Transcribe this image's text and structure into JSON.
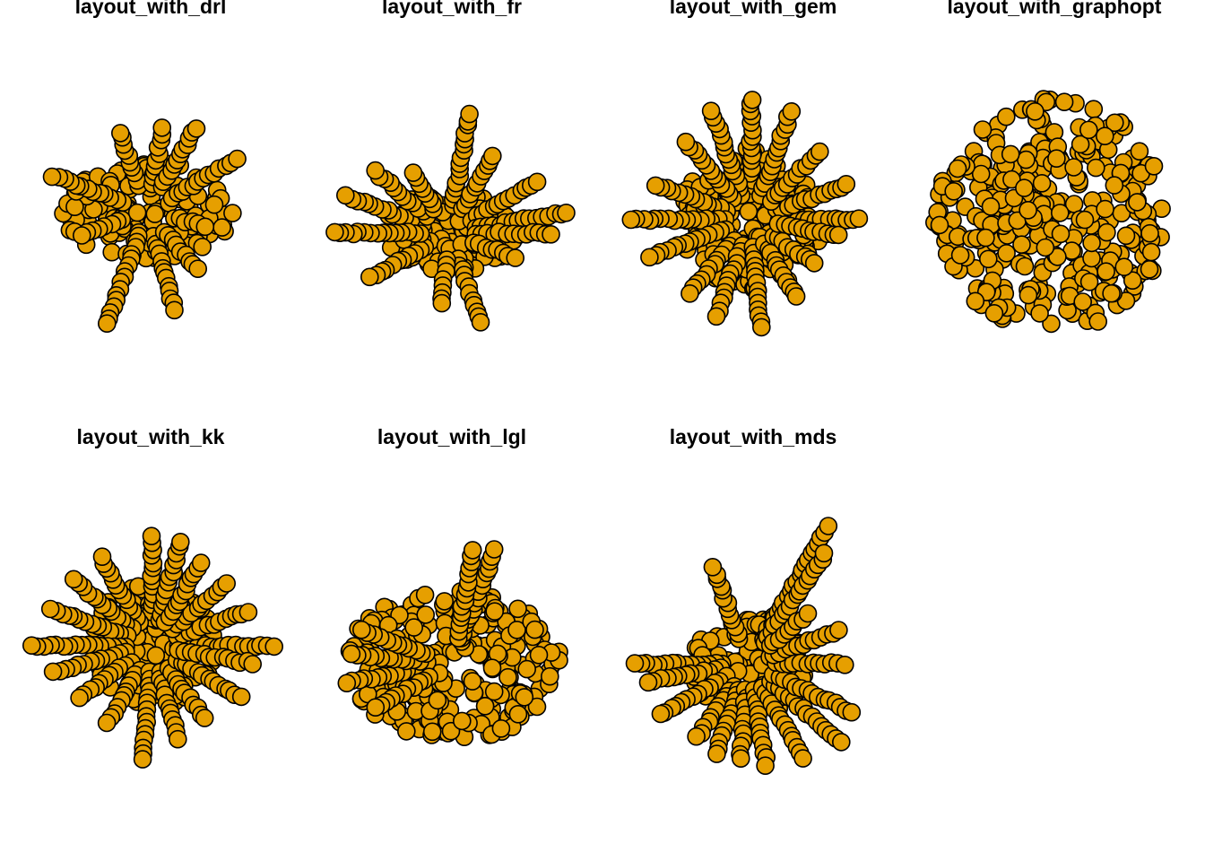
{
  "colors": {
    "node_fill": "#E69F00",
    "node_stroke": "#000000",
    "background": "#FFFFFF"
  },
  "panels": [
    {
      "title": "layout_with_drl"
    },
    {
      "title": "layout_with_fr"
    },
    {
      "title": "layout_with_gem"
    },
    {
      "title": "layout_with_graphopt"
    },
    {
      "title": "layout_with_kk"
    },
    {
      "title": "layout_with_lgl"
    },
    {
      "title": "layout_with_mds"
    }
  ]
}
